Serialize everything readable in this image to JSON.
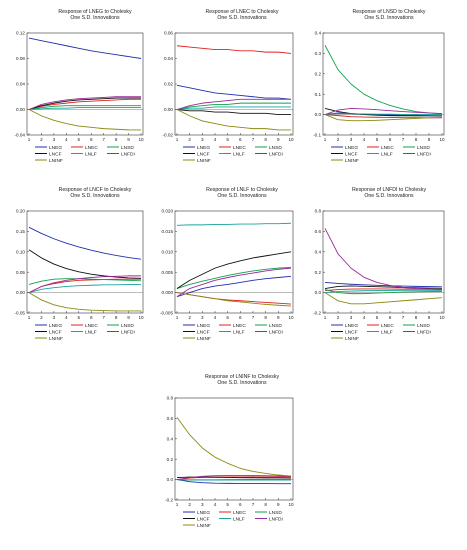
{
  "colors": {
    "LNEG": "#1f2fb0",
    "LNEC": "#e02020",
    "LNSD": "#12a04a",
    "LNCF": "#111111",
    "LNLF": "#1aa39a",
    "LNFDI": "#9a2a9a",
    "LNINF": "#8a8a10"
  },
  "legend_labels": [
    "LNEG",
    "LNEC",
    "LNSD",
    "LNCF",
    "LNLF",
    "LNFDI",
    "LNINF"
  ],
  "chart_data": [
    {
      "type": "line",
      "title": "Response of LNEG to Cholesky",
      "subtitle": "One S.D. Innovations",
      "x": [
        1,
        2,
        3,
        4,
        5,
        6,
        7,
        8,
        9,
        10
      ],
      "ylim": [
        -0.04,
        0.12
      ],
      "yticks": [
        "-0.04",
        "0.00",
        "0.04",
        "0.08",
        "0.12"
      ],
      "ytick_values": [
        -0.04,
        0.0,
        0.04,
        0.08,
        0.12
      ],
      "series": [
        {
          "name": "LNEG",
          "values": [
            0.112,
            0.108,
            0.104,
            0.1,
            0.096,
            0.092,
            0.089,
            0.086,
            0.083,
            0.08
          ]
        },
        {
          "name": "LNEC",
          "values": [
            0.0,
            0.005,
            0.008,
            0.01,
            0.012,
            0.013,
            0.014,
            0.015,
            0.016,
            0.016
          ]
        },
        {
          "name": "LNSD",
          "values": [
            0.0,
            0.003,
            0.005,
            0.006,
            0.006,
            0.006,
            0.006,
            0.006,
            0.006,
            0.006
          ]
        },
        {
          "name": "LNCF",
          "values": [
            0.0,
            0.006,
            0.01,
            0.013,
            0.015,
            0.016,
            0.017,
            0.018,
            0.018,
            0.018
          ]
        },
        {
          "name": "LNLF",
          "values": [
            0.0,
            0.001,
            0.002,
            0.002,
            0.003,
            0.003,
            0.003,
            0.003,
            0.003,
            0.003
          ]
        },
        {
          "name": "LNFDI",
          "values": [
            0.0,
            0.008,
            0.012,
            0.015,
            0.017,
            0.018,
            0.019,
            0.02,
            0.02,
            0.02
          ]
        },
        {
          "name": "LNINF",
          "values": [
            0.0,
            -0.01,
            -0.017,
            -0.022,
            -0.026,
            -0.028,
            -0.03,
            -0.031,
            -0.032,
            -0.032
          ]
        }
      ]
    },
    {
      "type": "line",
      "title": "Response of LNEC to Cholesky",
      "subtitle": "One S.D. Innovations",
      "x": [
        1,
        2,
        3,
        4,
        5,
        6,
        7,
        8,
        9,
        10
      ],
      "ylim": [
        -0.02,
        0.06
      ],
      "yticks": [
        "-0.02",
        "0.00",
        "0.02",
        "0.04",
        "0.06"
      ],
      "ytick_values": [
        -0.02,
        0.0,
        0.02,
        0.04,
        0.06
      ],
      "series": [
        {
          "name": "LNEG",
          "values": [
            0.019,
            0.017,
            0.015,
            0.013,
            0.012,
            0.011,
            0.01,
            0.009,
            0.009,
            0.008
          ]
        },
        {
          "name": "LNEC",
          "values": [
            0.05,
            0.049,
            0.048,
            0.047,
            0.047,
            0.046,
            0.046,
            0.045,
            0.045,
            0.044
          ]
        },
        {
          "name": "LNSD",
          "values": [
            0.0,
            0.002,
            0.003,
            0.004,
            0.004,
            0.005,
            0.005,
            0.005,
            0.005,
            0.005
          ]
        },
        {
          "name": "LNCF",
          "values": [
            0.0,
            -0.001,
            -0.001,
            -0.002,
            -0.002,
            -0.003,
            -0.003,
            -0.003,
            -0.004,
            -0.004
          ]
        },
        {
          "name": "LNLF",
          "values": [
            0.0,
            0.001,
            0.001,
            0.002,
            0.002,
            0.002,
            0.002,
            0.002,
            0.002,
            0.002
          ]
        },
        {
          "name": "LNFDI",
          "values": [
            0.0,
            0.003,
            0.005,
            0.006,
            0.007,
            0.008,
            0.008,
            0.008,
            0.008,
            0.008
          ]
        },
        {
          "name": "LNINF",
          "values": [
            0.0,
            -0.005,
            -0.009,
            -0.011,
            -0.013,
            -0.014,
            -0.015,
            -0.015,
            -0.016,
            -0.016
          ]
        }
      ]
    },
    {
      "type": "line",
      "title": "Response of LNSD to Cholesky",
      "subtitle": "One S.D. Innovations",
      "x": [
        1,
        2,
        3,
        4,
        5,
        6,
        7,
        8,
        9,
        10
      ],
      "ylim": [
        -0.1,
        0.4
      ],
      "yticks": [
        "-0.1",
        "0.0",
        "0.1",
        "0.2",
        "0.3",
        "0.4"
      ],
      "ytick_values": [
        -0.1,
        0.0,
        0.1,
        0.2,
        0.3,
        0.4
      ],
      "series": [
        {
          "name": "LNEG",
          "values": [
            0.0,
            0.008,
            0.005,
            0.002,
            0.0,
            -0.002,
            -0.004,
            -0.005,
            -0.006,
            -0.007
          ]
        },
        {
          "name": "LNEC",
          "values": [
            0.0,
            -0.005,
            -0.01,
            -0.012,
            -0.013,
            -0.014,
            -0.015,
            -0.015,
            -0.016,
            -0.016
          ]
        },
        {
          "name": "LNSD",
          "values": [
            0.34,
            0.22,
            0.15,
            0.1,
            0.068,
            0.045,
            0.028,
            0.015,
            0.008,
            0.004
          ]
        },
        {
          "name": "LNCF",
          "values": [
            0.03,
            0.015,
            0.005,
            0.0,
            -0.003,
            -0.005,
            -0.006,
            -0.006,
            -0.006,
            -0.006
          ]
        },
        {
          "name": "LNLF",
          "values": [
            0.0,
            0.005,
            0.004,
            0.003,
            0.002,
            0.002,
            0.001,
            0.001,
            0.001,
            0.001
          ]
        },
        {
          "name": "LNFDI",
          "values": [
            0.0,
            0.022,
            0.03,
            0.028,
            0.024,
            0.019,
            0.015,
            0.011,
            0.008,
            0.005
          ]
        },
        {
          "name": "LNINF",
          "values": [
            0.0,
            -0.025,
            -0.03,
            -0.03,
            -0.028,
            -0.025,
            -0.022,
            -0.019,
            -0.016,
            -0.014
          ]
        }
      ]
    },
    {
      "type": "line",
      "title": "Response of LNCF to Cholesky",
      "subtitle": "One S.D. Innovations",
      "x": [
        1,
        2,
        3,
        4,
        5,
        6,
        7,
        8,
        9,
        10
      ],
      "ylim": [
        -0.05,
        0.2
      ],
      "yticks": [
        "-0.05",
        "0.00",
        "0.05",
        "0.10",
        "0.15",
        "0.20"
      ],
      "ytick_values": [
        -0.05,
        0.0,
        0.05,
        0.1,
        0.15,
        0.2
      ],
      "series": [
        {
          "name": "LNEG",
          "values": [
            0.16,
            0.145,
            0.132,
            0.121,
            0.112,
            0.104,
            0.097,
            0.091,
            0.086,
            0.082
          ]
        },
        {
          "name": "LNEC",
          "values": [
            0.0,
            0.015,
            0.022,
            0.027,
            0.03,
            0.031,
            0.032,
            0.033,
            0.033,
            0.033
          ]
        },
        {
          "name": "LNSD",
          "values": [
            0.02,
            0.028,
            0.033,
            0.034,
            0.034,
            0.033,
            0.032,
            0.031,
            0.03,
            0.029
          ]
        },
        {
          "name": "LNCF",
          "values": [
            0.105,
            0.085,
            0.07,
            0.059,
            0.051,
            0.045,
            0.041,
            0.038,
            0.036,
            0.035
          ]
        },
        {
          "name": "LNLF",
          "values": [
            0.0,
            0.008,
            0.012,
            0.015,
            0.017,
            0.018,
            0.019,
            0.019,
            0.02,
            0.02
          ]
        },
        {
          "name": "LNFDI",
          "values": [
            0.0,
            0.015,
            0.024,
            0.03,
            0.034,
            0.037,
            0.039,
            0.04,
            0.041,
            0.041
          ]
        },
        {
          "name": "LNINF",
          "values": [
            0.0,
            -0.018,
            -0.03,
            -0.037,
            -0.041,
            -0.043,
            -0.044,
            -0.045,
            -0.045,
            -0.045
          ]
        }
      ]
    },
    {
      "type": "line",
      "title": "Response of LNLF to Cholesky",
      "subtitle": "One S.D. Innovations",
      "x": [
        1,
        2,
        3,
        4,
        5,
        6,
        7,
        8,
        9,
        10
      ],
      "ylim": [
        -0.005,
        0.02
      ],
      "yticks": [
        "-0.005",
        "0.000",
        "0.005",
        "0.010",
        "0.015",
        "0.020"
      ],
      "ytick_values": [
        -0.005,
        0.0,
        0.005,
        0.01,
        0.015,
        0.02
      ],
      "series": [
        {
          "name": "LNEG",
          "values": [
            -0.001,
            0.0,
            0.001,
            0.0016,
            0.002,
            0.0025,
            0.003,
            0.0034,
            0.0037,
            0.004
          ]
        },
        {
          "name": "LNEC",
          "values": [
            0.0,
            -0.0005,
            -0.001,
            -0.0015,
            -0.0018,
            -0.002,
            -0.0022,
            -0.0024,
            -0.0026,
            -0.0028
          ]
        },
        {
          "name": "LNSD",
          "values": [
            0.001,
            0.002,
            0.0028,
            0.0035,
            0.0042,
            0.0048,
            0.0053,
            0.0057,
            0.006,
            0.0062
          ]
        },
        {
          "name": "LNCF",
          "values": [
            0.001,
            0.003,
            0.0045,
            0.006,
            0.007,
            0.0078,
            0.0085,
            0.009,
            0.0095,
            0.01
          ]
        },
        {
          "name": "LNLF",
          "values": [
            0.0165,
            0.0166,
            0.0166,
            0.0167,
            0.0167,
            0.0168,
            0.0168,
            0.0169,
            0.0169,
            0.017
          ]
        },
        {
          "name": "LNFDI",
          "values": [
            -0.001,
            0.001,
            0.002,
            0.003,
            0.0037,
            0.0043,
            0.0048,
            0.0053,
            0.0057,
            0.006
          ]
        },
        {
          "name": "LNINF",
          "values": [
            0.0,
            -0.0005,
            -0.001,
            -0.0015,
            -0.002,
            -0.0023,
            -0.0026,
            -0.0029,
            -0.0031,
            -0.0033
          ]
        }
      ]
    },
    {
      "type": "line",
      "title": "Response of LNFDI to Cholesky",
      "subtitle": "One S.D. Innovations",
      "x": [
        1,
        2,
        3,
        4,
        5,
        6,
        7,
        8,
        9,
        10
      ],
      "ylim": [
        -0.2,
        0.8
      ],
      "yticks": [
        "-0.2",
        "0.0",
        "0.2",
        "0.4",
        "0.6",
        "0.8"
      ],
      "ytick_values": [
        -0.2,
        0.0,
        0.2,
        0.4,
        0.6,
        0.8
      ],
      "series": [
        {
          "name": "LNEG",
          "values": [
            0.1,
            0.09,
            0.082,
            0.076,
            0.071,
            0.067,
            0.064,
            0.061,
            0.059,
            0.057
          ]
        },
        {
          "name": "LNEC",
          "values": [
            0.02,
            0.03,
            0.035,
            0.036,
            0.036,
            0.035,
            0.034,
            0.033,
            0.032,
            0.031
          ]
        },
        {
          "name": "LNSD",
          "values": [
            0.03,
            0.0,
            -0.01,
            -0.01,
            -0.005,
            0.0,
            0.005,
            0.008,
            0.01,
            0.012
          ]
        },
        {
          "name": "LNCF",
          "values": [
            0.04,
            0.06,
            0.065,
            0.062,
            0.058,
            0.054,
            0.05,
            0.047,
            0.044,
            0.042
          ]
        },
        {
          "name": "LNLF",
          "values": [
            0.0,
            0.01,
            0.015,
            0.018,
            0.02,
            0.021,
            0.022,
            0.022,
            0.022,
            0.022
          ]
        },
        {
          "name": "LNFDI",
          "values": [
            0.63,
            0.38,
            0.24,
            0.15,
            0.1,
            0.07,
            0.05,
            0.04,
            0.035,
            0.03
          ]
        },
        {
          "name": "LNINF",
          "values": [
            0.0,
            -0.08,
            -0.11,
            -0.11,
            -0.1,
            -0.09,
            -0.08,
            -0.07,
            -0.06,
            -0.05
          ]
        }
      ]
    },
    {
      "type": "line",
      "title": "Response of LNINF to Cholesky",
      "subtitle": "One S.D. Innovations",
      "x": [
        1,
        2,
        3,
        4,
        5,
        6,
        7,
        8,
        9,
        10
      ],
      "ylim": [
        -0.2,
        0.8
      ],
      "yticks": [
        "-0.2",
        "0.0",
        "0.2",
        "0.4",
        "0.6",
        "0.8"
      ],
      "ytick_values": [
        -0.2,
        0.0,
        0.2,
        0.4,
        0.6,
        0.8
      ],
      "series": [
        {
          "name": "LNEG",
          "values": [
            0.0,
            -0.02,
            -0.03,
            -0.035,
            -0.037,
            -0.038,
            -0.039,
            -0.039,
            -0.04,
            -0.04
          ]
        },
        {
          "name": "LNEC",
          "values": [
            0.0,
            0.015,
            0.022,
            0.025,
            0.026,
            0.026,
            0.026,
            0.026,
            0.026,
            0.026
          ]
        },
        {
          "name": "LNSD",
          "values": [
            0.0,
            -0.005,
            -0.005,
            -0.003,
            -0.001,
            0.0,
            0.001,
            0.002,
            0.002,
            0.002
          ]
        },
        {
          "name": "LNCF",
          "values": [
            0.02,
            0.025,
            0.025,
            0.023,
            0.021,
            0.019,
            0.018,
            0.017,
            0.016,
            0.015
          ]
        },
        {
          "name": "LNLF",
          "values": [
            0.0,
            -0.003,
            -0.004,
            -0.005,
            -0.005,
            -0.005,
            -0.005,
            -0.005,
            -0.005,
            -0.005
          ]
        },
        {
          "name": "LNFDI",
          "values": [
            0.0,
            0.02,
            0.032,
            0.038,
            0.04,
            0.04,
            0.039,
            0.038,
            0.036,
            0.035
          ]
        },
        {
          "name": "LNINF",
          "values": [
            0.61,
            0.44,
            0.31,
            0.22,
            0.16,
            0.11,
            0.08,
            0.06,
            0.045,
            0.035
          ]
        }
      ]
    }
  ]
}
